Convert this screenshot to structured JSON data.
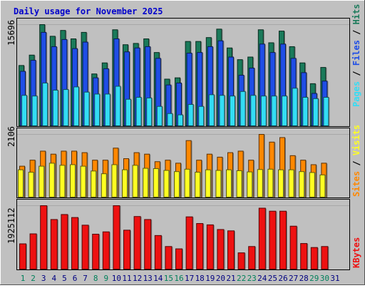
{
  "chart_data": [
    {
      "type": "bar",
      "title": "Daily usage for November 2025",
      "categories": [
        "1",
        "2",
        "3",
        "4",
        "5",
        "6",
        "7",
        "8",
        "9",
        "10",
        "11",
        "12",
        "13",
        "14",
        "15",
        "16",
        "17",
        "18",
        "19",
        "20",
        "21",
        "22",
        "23",
        "24",
        "25",
        "26",
        "27",
        "28",
        "29",
        "30",
        "31"
      ],
      "ytick": "15696",
      "ylabel_parts": [
        "Pages",
        "Files",
        "Hits"
      ],
      "series": [
        {
          "name": "Hits",
          "color": "#1a7a5a",
          "values": [
            9400,
            11000,
            15696,
            13900,
            14800,
            13500,
            14500,
            8100,
            9800,
            14900,
            12600,
            12800,
            13500,
            11400,
            7300,
            7500,
            13100,
            13100,
            13700,
            15000,
            12100,
            10300,
            10700,
            14900,
            12900,
            14700,
            12300,
            9800,
            6600,
            9100,
            null
          ]
        },
        {
          "name": "Files",
          "color": "#1f4ee6",
          "values": [
            8500,
            10200,
            14500,
            12300,
            13400,
            12000,
            13000,
            7500,
            8900,
            13500,
            11500,
            12100,
            12300,
            10500,
            6400,
            6700,
            11300,
            11400,
            12300,
            13200,
            10700,
            7900,
            9000,
            12700,
            11400,
            12700,
            10500,
            8300,
            5100,
            7000,
            null
          ]
        },
        {
          "name": "Pages",
          "color": "#33ddf5",
          "values": [
            4800,
            4700,
            6700,
            5600,
            5700,
            6100,
            5300,
            5000,
            5000,
            6200,
            4200,
            4500,
            4400,
            3100,
            2000,
            1800,
            3400,
            3100,
            4900,
            4800,
            4700,
            5400,
            4800,
            4700,
            4700,
            4700,
            5900,
            4500,
            4300,
            4500,
            null
          ]
        }
      ]
    },
    {
      "type": "bar",
      "categories": [
        "1",
        "2",
        "3",
        "4",
        "5",
        "6",
        "7",
        "8",
        "9",
        "10",
        "11",
        "12",
        "13",
        "14",
        "15",
        "16",
        "17",
        "18",
        "19",
        "20",
        "21",
        "22",
        "23",
        "24",
        "25",
        "26",
        "27",
        "28",
        "29",
        "30",
        "31"
      ],
      "ytick": "2106",
      "ylabel_parts": [
        "Sites",
        "Visits"
      ],
      "series": [
        {
          "name": "Visits",
          "color": "#ff8800",
          "values": [
            1050,
            1250,
            1550,
            1450,
            1550,
            1550,
            1500,
            1250,
            1250,
            1650,
            1300,
            1500,
            1450,
            1200,
            1250,
            1150,
            1900,
            1250,
            1450,
            1350,
            1500,
            1550,
            1250,
            2106,
            1850,
            2000,
            1400,
            1250,
            1100,
            1150,
            null
          ]
        },
        {
          "name": "Sites",
          "color": "#ffff22",
          "values": [
            930,
            850,
            1050,
            1150,
            1080,
            1100,
            1050,
            890,
            800,
            1100,
            930,
            1080,
            980,
            970,
            910,
            870,
            950,
            850,
            930,
            910,
            930,
            900,
            860,
            940,
            950,
            930,
            930,
            870,
            840,
            760,
            null
          ]
        }
      ]
    },
    {
      "type": "bar",
      "categories": [
        "1",
        "2",
        "3",
        "4",
        "5",
        "6",
        "7",
        "8",
        "9",
        "10",
        "11",
        "12",
        "13",
        "14",
        "15",
        "16",
        "17",
        "18",
        "19",
        "20",
        "21",
        "22",
        "23",
        "24",
        "25",
        "26",
        "27",
        "28",
        "29",
        "30",
        "31"
      ],
      "ytick": "1925112",
      "ylabel_parts": [
        "KBytes"
      ],
      "series": [
        {
          "name": "KBytes",
          "color": "#ee1111",
          "values": [
            780000,
            1080000,
            1925112,
            1510000,
            1660000,
            1570000,
            1340000,
            1070000,
            1140000,
            1925112,
            1190000,
            1600000,
            1510000,
            1030000,
            700000,
            630000,
            1590000,
            1390000,
            1350000,
            1210000,
            1170000,
            510000,
            700000,
            1850000,
            1760000,
            1760000,
            1310000,
            790000,
            670000,
            700000,
            null
          ]
        }
      ]
    }
  ],
  "colors": {
    "background": "#c0c0c0",
    "plot_background": "#c0c0c0",
    "title": "#0000cc",
    "weekend_day": "#00805a",
    "weekday": "#000080"
  },
  "weekend_days": [
    "1",
    "2",
    "8",
    "9",
    "15",
    "16",
    "22",
    "23",
    "29",
    "30"
  ]
}
